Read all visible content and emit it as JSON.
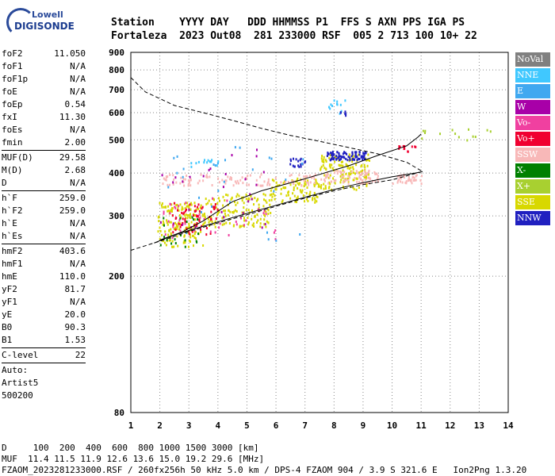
{
  "logo": {
    "line1": "Lowell",
    "line2": "DIGISONDE"
  },
  "header": {
    "labels": "Station    YYYY DAY   DDD HHMMSS P1  FFS S AXN PPS IGA PS",
    "values": "Fortaleza  2023 Out08  281 233000 RSF  005 2 713 100 10+ 22"
  },
  "params": {
    "group1": [
      {
        "name": "foF2",
        "value": "11.050"
      },
      {
        "name": "foF1",
        "value": "N/A"
      },
      {
        "name": "foF1p",
        "value": "N/A"
      },
      {
        "name": "foE",
        "value": "N/A"
      },
      {
        "name": "foEp",
        "value": "0.54"
      },
      {
        "name": "fxI",
        "value": "11.30"
      },
      {
        "name": "foEs",
        "value": "N/A"
      },
      {
        "name": "fmin",
        "value": "2.00"
      }
    ],
    "group2": [
      {
        "name": "MUF(D)",
        "value": "29.58"
      },
      {
        "name": "M(D)",
        "value": "2.68"
      },
      {
        "name": "D",
        "value": "N/A"
      }
    ],
    "group3": [
      {
        "name": "h`F",
        "value": "259.0"
      },
      {
        "name": "h`F2",
        "value": "259.0"
      },
      {
        "name": "h`E",
        "value": "N/A"
      },
      {
        "name": "h`Es",
        "value": "N/A"
      }
    ],
    "group4": [
      {
        "name": "hmF2",
        "value": "403.6"
      },
      {
        "name": "hmF1",
        "value": "N/A"
      },
      {
        "name": "hmE",
        "value": "110.0"
      },
      {
        "name": "yF2",
        "value": "81.7"
      },
      {
        "name": "yF1",
        "value": "N/A"
      },
      {
        "name": "yE",
        "value": "20.0"
      },
      {
        "name": "B0",
        "value": "90.3"
      },
      {
        "name": "B1",
        "value": "1.53"
      }
    ],
    "group5": [
      {
        "name": "C-level",
        "value": "22"
      }
    ],
    "extra": [
      "Auto:",
      "Artist5",
      "500200"
    ]
  },
  "legend": [
    {
      "label": "NoVal",
      "color": "#808080"
    },
    {
      "label": "NNE",
      "color": "#40c8ff"
    },
    {
      "label": "E",
      "color": "#40a8f0"
    },
    {
      "label": "W",
      "color": "#a800a8"
    },
    {
      "label": "Vo-",
      "color": "#f040a0"
    },
    {
      "label": "Vo+",
      "color": "#f00030"
    },
    {
      "label": "SSW",
      "color": "#f8b8b8"
    },
    {
      "label": "X-",
      "color": "#008000"
    },
    {
      "label": "X+",
      "color": "#a8d030"
    },
    {
      "label": "SSE",
      "color": "#d8d800"
    },
    {
      "label": "NNW",
      "color": "#2020c0"
    }
  ],
  "footer": {
    "line1": "D     100  200  400  600  800 1000 1500 3000 [km]",
    "line2": "MUF  11.4 11.5 11.9 12.6 13.6 15.0 19.2 29.6 [MHz]",
    "line3": "FZAOM_2023281233000.RSF / 260fx256h 50 kHz 5.0 km / DPS-4 FZAOM 904 / 3.9 S 321.6 E   Ion2Png 1.3.20"
  },
  "chart_data": {
    "type": "scatter",
    "title": "",
    "xlabel": "",
    "ylabel": "",
    "xlim": [
      1,
      14
    ],
    "ylim": [
      80,
      900
    ],
    "xticks": [
      "1",
      "2",
      "3",
      "4",
      "5",
      "6",
      "7",
      "8",
      "9",
      "10",
      "11",
      "12",
      "13",
      "14"
    ],
    "yticks": [
      "80",
      "200",
      "300",
      "400",
      "500",
      "600",
      "700",
      "800",
      "900"
    ],
    "grid": true,
    "yscale": "log",
    "traces": [
      {
        "style": "solid",
        "points": [
          [
            1.8,
            250
          ],
          [
            2.4,
            262
          ],
          [
            3.0,
            272
          ],
          [
            4.0,
            288
          ],
          [
            5.0,
            305
          ],
          [
            6.0,
            322
          ],
          [
            7.0,
            340
          ],
          [
            8.0,
            358
          ],
          [
            9.0,
            375
          ],
          [
            10.0,
            390
          ],
          [
            10.8,
            400
          ],
          [
            11.05,
            404
          ]
        ]
      },
      {
        "style": "solid",
        "points": [
          [
            2.0,
            255
          ],
          [
            2.8,
            270
          ],
          [
            3.5,
            290
          ],
          [
            4.5,
            330
          ],
          [
            5.5,
            355
          ],
          [
            7.0,
            385
          ],
          [
            8.5,
            420
          ],
          [
            9.5,
            450
          ],
          [
            10.5,
            480
          ],
          [
            10.9,
            510
          ],
          [
            11.0,
            520
          ]
        ]
      },
      {
        "style": "dashed",
        "points": [
          [
            1.0,
            760
          ],
          [
            1.5,
            690
          ],
          [
            2.5,
            630
          ],
          [
            3.5,
            600
          ],
          [
            4.5,
            570
          ],
          [
            5.5,
            540
          ],
          [
            6.5,
            515
          ],
          [
            7.5,
            495
          ],
          [
            8.5,
            475
          ],
          [
            9.5,
            455
          ],
          [
            10.5,
            430
          ],
          [
            11.05,
            404
          ],
          [
            10.0,
            382
          ],
          [
            9.0,
            370
          ],
          [
            8.0,
            355
          ],
          [
            7.0,
            338
          ],
          [
            6.0,
            320
          ],
          [
            5.0,
            302
          ],
          [
            4.0,
            286
          ],
          [
            3.0,
            270
          ],
          [
            2.0,
            253
          ],
          [
            1.0,
            238
          ]
        ]
      }
    ],
    "clusters": [
      {
        "label": "SSE",
        "x0": 1.9,
        "x1": 3.5,
        "y0": 245,
        "y1": 330,
        "n": 160
      },
      {
        "label": "SSE",
        "x0": 3.5,
        "x1": 5.8,
        "y0": 280,
        "y1": 350,
        "n": 140
      },
      {
        "label": "SSE",
        "x0": 5.8,
        "x1": 7.5,
        "y0": 330,
        "y1": 390,
        "n": 90
      },
      {
        "label": "SSE",
        "x0": 7.5,
        "x1": 9.2,
        "y0": 360,
        "y1": 460,
        "n": 140
      },
      {
        "label": "SSW",
        "x0": 2.0,
        "x1": 7.5,
        "y0": 370,
        "y1": 400,
        "n": 110
      },
      {
        "label": "SSW",
        "x0": 7.5,
        "x1": 9.5,
        "y0": 375,
        "y1": 410,
        "n": 80
      },
      {
        "label": "SSW",
        "x0": 10.0,
        "x1": 11.0,
        "y0": 375,
        "y1": 400,
        "n": 40
      },
      {
        "label": "NNW",
        "x0": 7.7,
        "x1": 9.1,
        "y0": 440,
        "y1": 465,
        "n": 90
      },
      {
        "label": "NNW",
        "x0": 6.4,
        "x1": 7.0,
        "y0": 420,
        "y1": 445,
        "n": 18
      },
      {
        "label": "Vo+",
        "x0": 2.4,
        "x1": 4.0,
        "y0": 265,
        "y1": 330,
        "n": 60
      },
      {
        "label": "Vo+",
        "x0": 10.2,
        "x1": 10.8,
        "y0": 465,
        "y1": 485,
        "n": 12
      },
      {
        "label": "Vo-",
        "x0": 2.0,
        "x1": 6.0,
        "y0": 250,
        "y1": 340,
        "n": 40
      },
      {
        "label": "W",
        "x0": 2.0,
        "x1": 6.0,
        "y0": 260,
        "y1": 480,
        "n": 30
      },
      {
        "label": "E",
        "x0": 2.0,
        "x1": 7.0,
        "y0": 250,
        "y1": 480,
        "n": 30
      },
      {
        "label": "NNE",
        "x0": 7.8,
        "x1": 8.5,
        "y0": 600,
        "y1": 660,
        "n": 12
      },
      {
        "label": "NNE",
        "x0": 3.0,
        "x1": 4.0,
        "y0": 420,
        "y1": 440,
        "n": 14
      },
      {
        "label": "X-",
        "x0": 2.0,
        "x1": 3.5,
        "y0": 245,
        "y1": 300,
        "n": 20
      },
      {
        "label": "X+",
        "x0": 10.8,
        "x1": 13.5,
        "y0": 500,
        "y1": 540,
        "n": 14
      },
      {
        "label": "NNW",
        "x0": 8.2,
        "x1": 8.4,
        "y0": 590,
        "y1": 610,
        "n": 6
      }
    ]
  }
}
